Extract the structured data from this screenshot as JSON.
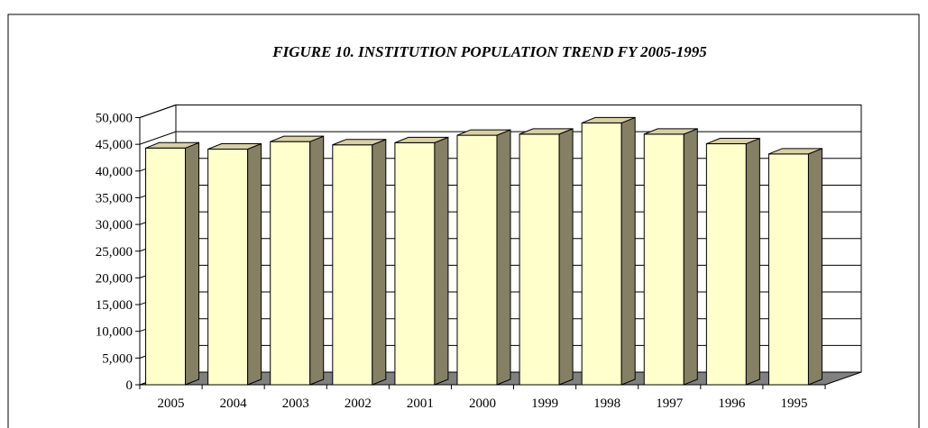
{
  "chart_data": {
    "type": "bar",
    "title": "FIGURE 10. INSTITUTION POPULATION TREND FY 2005-1995",
    "xlabel": "",
    "ylabel": "",
    "categories": [
      "2005",
      "2004",
      "2003",
      "2002",
      "2001",
      "2000",
      "1999",
      "1998",
      "1997",
      "1996",
      "1995"
    ],
    "series": [
      {
        "values": [
          44300,
          44100,
          45500,
          44900,
          45300,
          46700,
          46900,
          49000,
          46900,
          45100,
          43200
        ]
      }
    ],
    "ylim": [
      0,
      50000
    ],
    "yticks": [
      0,
      5000,
      10000,
      15000,
      20000,
      25000,
      30000,
      35000,
      40000,
      45000,
      50000
    ],
    "ytick_labels": [
      "0",
      "5,000",
      "10,000",
      "15,000",
      "20,000",
      "25,000",
      "30,000",
      "35,000",
      "40,000",
      "45,000",
      "50,000"
    ],
    "grid": true,
    "three_d": true,
    "legend": "none",
    "colors": {
      "bar_front": "#ffffcc",
      "bar_top": "#d6d0a3",
      "bar_side": "#858064",
      "floor": "#808080",
      "grid": "#000000"
    }
  }
}
